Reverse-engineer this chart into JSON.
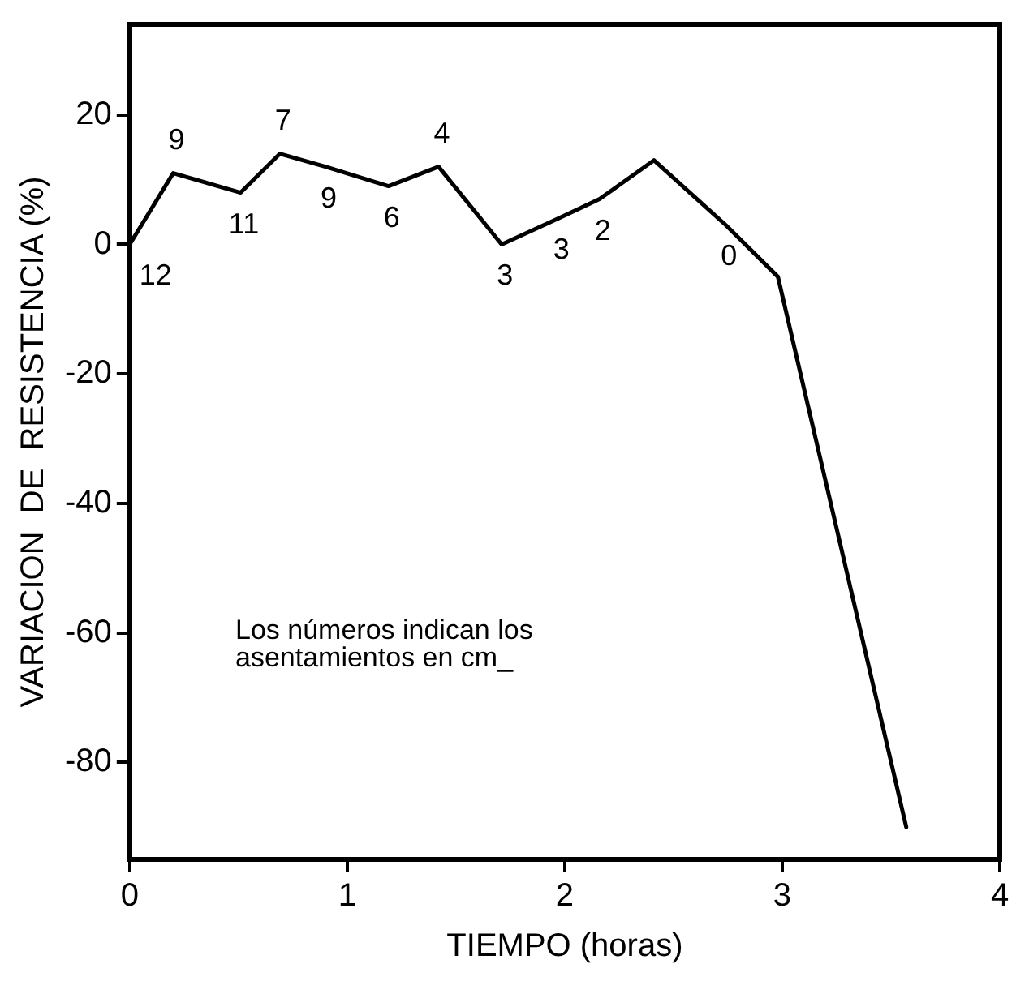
{
  "chart_data": {
    "type": "line",
    "xlabel": "TIEMPO (horas)",
    "ylabel": "VARIACION  DE  RESISTENCIA (%)",
    "x": [
      0,
      0.2,
      0.51,
      0.69,
      0.9,
      1.19,
      1.42,
      1.71,
      1.97,
      2.16,
      2.41,
      2.74,
      2.98,
      3.57
    ],
    "series": [
      {
        "color": "#000000",
        "values": [
          0,
          11,
          8,
          14,
          12,
          9,
          12,
          0,
          4,
          7,
          13,
          3,
          -5,
          -90
        ]
      }
    ],
    "xlim": [
      0,
      4
    ],
    "xticks": [
      0,
      1,
      2,
      3,
      4
    ],
    "ylim": [
      -95,
      34
    ],
    "yticks": [
      -80,
      -60,
      -40,
      -20,
      0,
      20
    ],
    "grid": false,
    "legend": false,
    "marker": "none",
    "line_style": "solid",
    "annotations": [
      "Los números indican los asentamientos en cm_",
      {
        "text": "12",
        "x": 0,
        "y": 0
      },
      {
        "text": "9",
        "x": 0.2,
        "y": 11
      },
      {
        "text": "11",
        "x": 0.51,
        "y": 8
      },
      {
        "text": "7",
        "x": 0.69,
        "y": 14
      },
      {
        "text": "9",
        "x": 0.9,
        "y": 12
      },
      {
        "text": "6",
        "x": 1.19,
        "y": 9
      },
      {
        "text": "4",
        "x": 1.42,
        "y": 12
      },
      {
        "text": "3",
        "x": 1.71,
        "y": 0
      },
      {
        "text": "3",
        "x": 1.97,
        "y": 4
      },
      {
        "text": "2",
        "x": 2.16,
        "y": 7
      },
      {
        "text": "0",
        "x": 2.74,
        "y": 3
      }
    ]
  }
}
